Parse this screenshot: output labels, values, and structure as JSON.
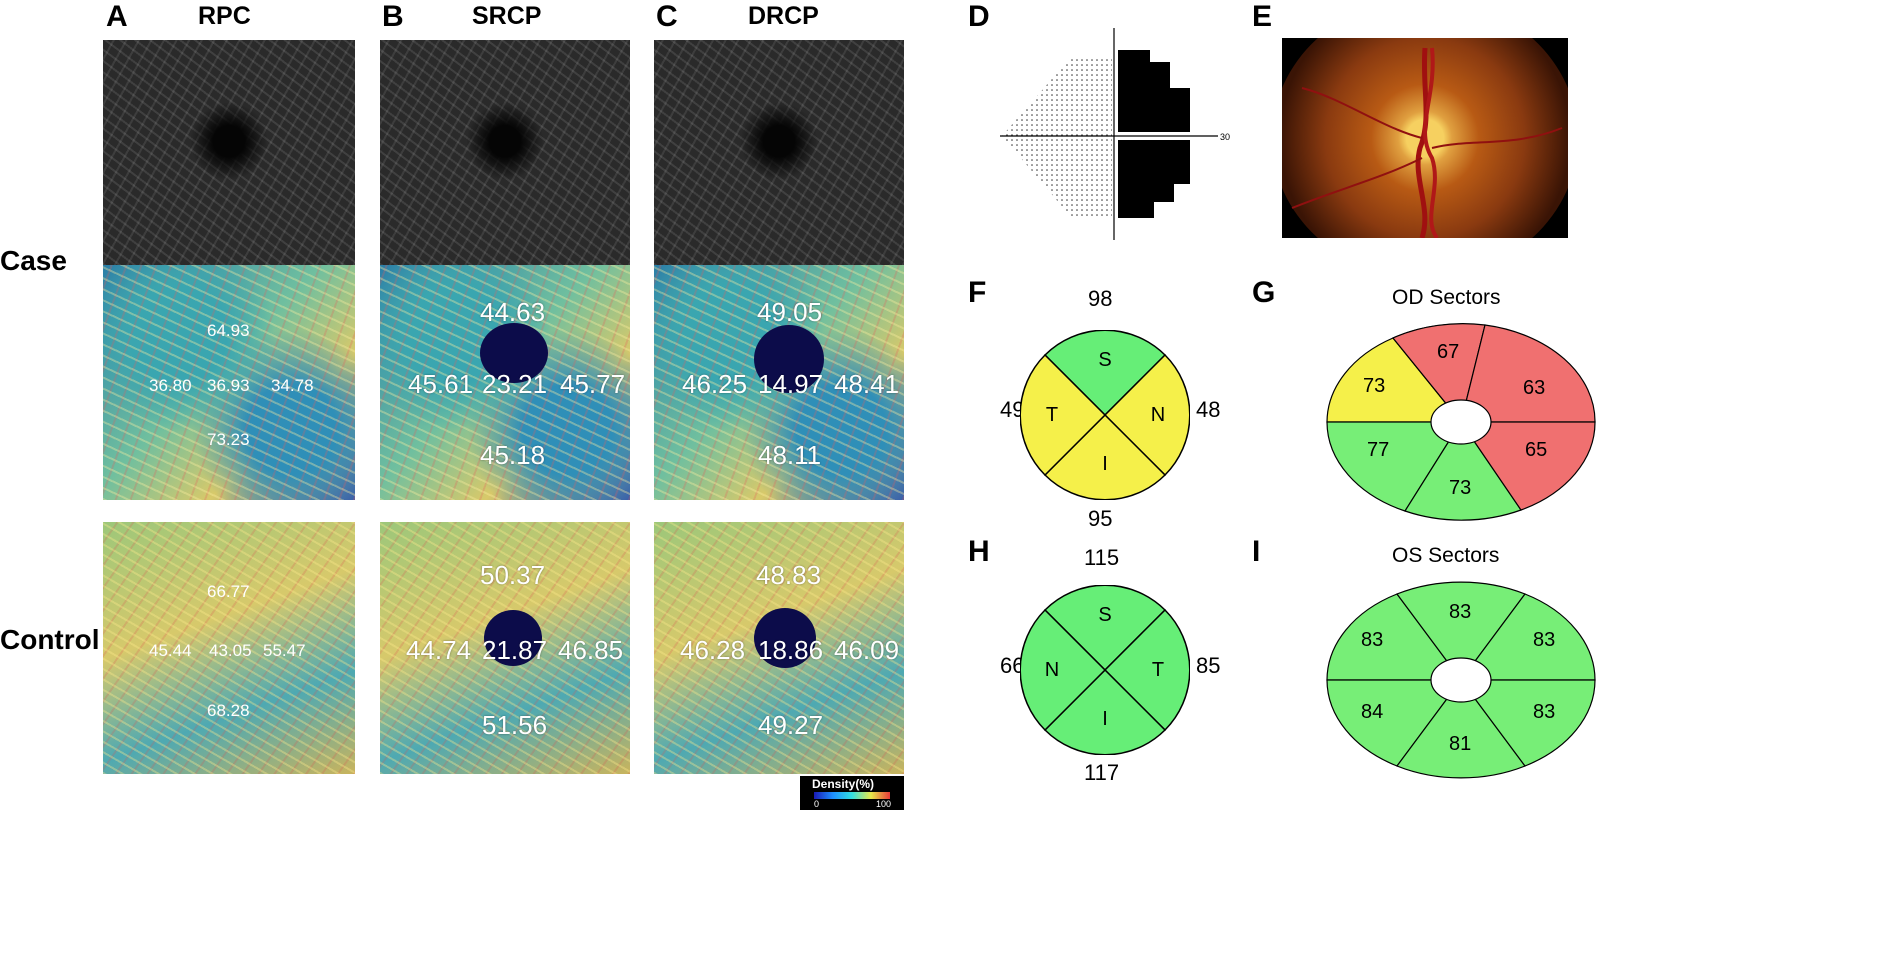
{
  "panels": {
    "A": {
      "letter": "A",
      "title": "RPC"
    },
    "B": {
      "letter": "B",
      "title": "SRCP"
    },
    "C": {
      "letter": "C",
      "title": "DRCP"
    },
    "D": {
      "letter": "D"
    },
    "E": {
      "letter": "E"
    },
    "F": {
      "letter": "F"
    },
    "G": {
      "letter": "G",
      "title": "OD Sectors"
    },
    "H": {
      "letter": "H"
    },
    "I": {
      "letter": "I",
      "title": "OS Sectors"
    }
  },
  "rows": {
    "case": "Case",
    "control": "Control"
  },
  "case": {
    "rpc": {
      "superior": "64.93",
      "temporal": "36.80",
      "center": "36.93",
      "nasal": "34.78",
      "inferior": "73.23"
    },
    "srcp": {
      "superior": "44.63",
      "temporal": "45.61",
      "center": "23.21",
      "nasal": "45.77",
      "inferior": "45.18"
    },
    "drcp": {
      "superior": "49.05",
      "temporal": "46.25",
      "center": "14.97",
      "nasal": "48.41",
      "inferior": "48.11"
    }
  },
  "control": {
    "rpc": {
      "superior": "66.77",
      "temporal": "45.44",
      "center": "43.05",
      "nasal": "55.47",
      "inferior": "68.28"
    },
    "srcp": {
      "superior": "50.37",
      "temporal": "44.74",
      "center": "21.87",
      "nasal": "46.85",
      "inferior": "51.56"
    },
    "drcp": {
      "superior": "48.83",
      "temporal": "46.28",
      "center": "18.86",
      "nasal": "46.09",
      "inferior": "49.27"
    }
  },
  "colorbar": {
    "title": "Density(%)",
    "min": "0",
    "max": "100"
  },
  "visual_field": {
    "axis_label": "30"
  },
  "F": {
    "top": "98",
    "left": "49",
    "right": "48",
    "bottom": "95",
    "quads": {
      "S": "S",
      "T": "T",
      "N": "N",
      "I": "I"
    },
    "colors": {
      "S": "#66ee77",
      "T": "#f5f04a",
      "N": "#f5f04a",
      "I": "#f5f04a"
    }
  },
  "H": {
    "top": "115",
    "left": "66",
    "right": "85",
    "bottom": "117",
    "quads": {
      "S": "S",
      "N": "N",
      "T": "T",
      "I": "I"
    },
    "colors": {
      "S": "#66ee77",
      "N": "#66ee77",
      "T": "#66ee77",
      "I": "#66ee77"
    }
  },
  "G": {
    "sectors": {
      "upper_left": "73",
      "top_left": "67",
      "top_right": "63",
      "lower_left": "77",
      "bottom": "73",
      "lower_right": "65"
    },
    "colors": {
      "yellow": "#f5f04a",
      "red": "#f07070",
      "green": "#77ee77"
    }
  },
  "I": {
    "sectors": {
      "upper_left": "83",
      "top": "83",
      "upper_right": "83",
      "lower_left": "84",
      "bottom": "81",
      "lower_right": "83"
    },
    "colors": {
      "green": "#77ee77"
    }
  }
}
